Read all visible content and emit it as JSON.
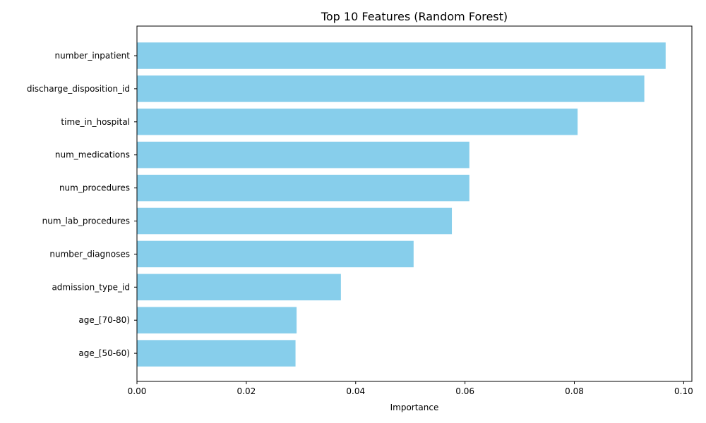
{
  "chart_data": {
    "type": "bar",
    "orientation": "horizontal",
    "title": "Top 10 Features (Random Forest)",
    "xlabel": "Importance",
    "ylabel": "",
    "categories": [
      "number_inpatient",
      "discharge_disposition_id",
      "time_in_hospital",
      "num_medications",
      "num_procedures",
      "num_lab_procedures",
      "number_diagnoses",
      "admission_type_id",
      "age_[70-80)",
      "age_[50-60)"
    ],
    "values": [
      0.0967,
      0.0928,
      0.0806,
      0.0608,
      0.0608,
      0.0576,
      0.0506,
      0.0373,
      0.0292,
      0.029
    ],
    "xlim": [
      0,
      0.1015
    ],
    "xticks": [
      0.0,
      0.02,
      0.04,
      0.06,
      0.08,
      0.1
    ],
    "xtick_labels": [
      "0.00",
      "0.02",
      "0.04",
      "0.06",
      "0.08",
      "0.10"
    ],
    "bar_color": "#87CEEB",
    "grid": false
  }
}
